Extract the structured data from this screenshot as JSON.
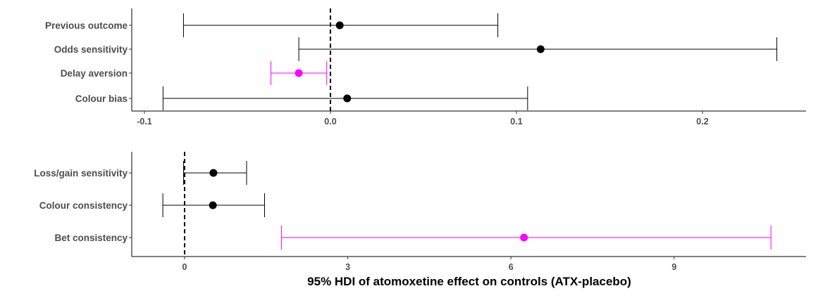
{
  "chart_data": [
    {
      "type": "forest",
      "xlim": [
        -0.1,
        0.26
      ],
      "ticks": [
        "-0.1",
        "0.0",
        "0.1",
        "0.2"
      ],
      "tick_values": [
        -0.1,
        0.0,
        0.1,
        0.2
      ],
      "reference_line": 0,
      "rows": [
        {
          "label": "Previous outcome",
          "estimate": 0.005,
          "lower": -0.079,
          "upper": 0.09,
          "color": "#000000"
        },
        {
          "label": "Odds sensitivity",
          "estimate": 0.113,
          "lower": -0.017,
          "upper": 0.24,
          "color": "#000000"
        },
        {
          "label": "Delay aversion",
          "estimate": -0.017,
          "lower": -0.032,
          "upper": -0.002,
          "color": "#ff00ff"
        },
        {
          "label": "Colour bias",
          "estimate": 0.009,
          "lower": -0.09,
          "upper": 0.106,
          "color": "#000000"
        }
      ]
    },
    {
      "type": "forest",
      "xlim": [
        -1.0,
        11.0
      ],
      "ticks": [
        "0",
        "3",
        "6",
        "9"
      ],
      "tick_values": [
        0,
        3,
        6,
        9
      ],
      "reference_line": 0,
      "rows": [
        {
          "label": "Loss/gain sensitivity",
          "estimate": 0.53,
          "lower": -0.02,
          "upper": 1.14,
          "color": "#000000"
        },
        {
          "label": "Colour consistency",
          "estimate": 0.52,
          "lower": -0.4,
          "upper": 1.47,
          "color": "#000000"
        },
        {
          "label": "Bet consistency",
          "estimate": 6.24,
          "lower": 1.78,
          "upper": 10.78,
          "color": "#ff00ff"
        }
      ]
    }
  ],
  "xlabel": "95% HDI of atomoxetine effect on controls (ATX-placebo)",
  "colors": {
    "credible": "#ff00ff",
    "default": "#000000",
    "axis_text": "#4d4d4d"
  }
}
